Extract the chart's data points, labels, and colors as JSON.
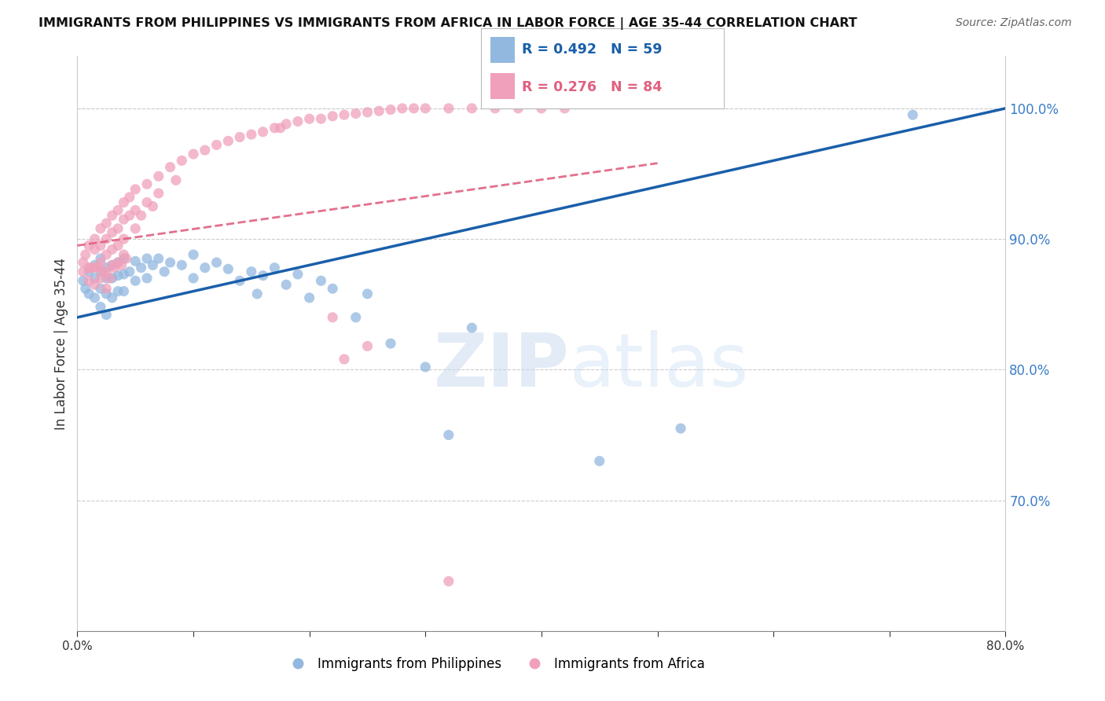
{
  "title": "IMMIGRANTS FROM PHILIPPINES VS IMMIGRANTS FROM AFRICA IN LABOR FORCE | AGE 35-44 CORRELATION CHART",
  "source": "Source: ZipAtlas.com",
  "ylabel": "In Labor Force | Age 35-44",
  "xlim": [
    0.0,
    0.8
  ],
  "ylim": [
    0.6,
    1.04
  ],
  "yticks_right": [
    0.7,
    0.8,
    0.9,
    1.0
  ],
  "blue_R": 0.492,
  "blue_N": 59,
  "pink_R": 0.276,
  "pink_N": 84,
  "blue_color": "#92b8e0",
  "pink_color": "#f0a0ba",
  "blue_line_color": "#1a5faa",
  "pink_line_color": "#e06080",
  "legend_blue_label": "Immigrants from Philippines",
  "legend_pink_label": "Immigrants from Africa",
  "watermark_zip": "ZIP",
  "watermark_atlas": "atlas",
  "blue_x": [
    0.005,
    0.007,
    0.01,
    0.01,
    0.015,
    0.015,
    0.015,
    0.02,
    0.02,
    0.02,
    0.02,
    0.025,
    0.025,
    0.025,
    0.025,
    0.03,
    0.03,
    0.03,
    0.035,
    0.035,
    0.035,
    0.04,
    0.04,
    0.04,
    0.045,
    0.05,
    0.05,
    0.055,
    0.06,
    0.06,
    0.065,
    0.07,
    0.075,
    0.08,
    0.09,
    0.1,
    0.1,
    0.11,
    0.12,
    0.13,
    0.14,
    0.15,
    0.155,
    0.16,
    0.17,
    0.18,
    0.19,
    0.2,
    0.21,
    0.22,
    0.24,
    0.25,
    0.27,
    0.3,
    0.32,
    0.34,
    0.45,
    0.52,
    0.72
  ],
  "blue_y": [
    0.868,
    0.862,
    0.875,
    0.858,
    0.88,
    0.87,
    0.855,
    0.885,
    0.875,
    0.862,
    0.848,
    0.878,
    0.87,
    0.858,
    0.842,
    0.88,
    0.87,
    0.855,
    0.882,
    0.872,
    0.86,
    0.885,
    0.873,
    0.86,
    0.875,
    0.883,
    0.868,
    0.878,
    0.885,
    0.87,
    0.88,
    0.885,
    0.875,
    0.882,
    0.88,
    0.888,
    0.87,
    0.878,
    0.882,
    0.877,
    0.868,
    0.875,
    0.858,
    0.872,
    0.878,
    0.865,
    0.873,
    0.855,
    0.868,
    0.862,
    0.84,
    0.858,
    0.82,
    0.802,
    0.75,
    0.832,
    0.73,
    0.755,
    0.995
  ],
  "pink_x": [
    0.005,
    0.005,
    0.007,
    0.01,
    0.01,
    0.01,
    0.012,
    0.015,
    0.015,
    0.015,
    0.015,
    0.018,
    0.02,
    0.02,
    0.02,
    0.02,
    0.022,
    0.025,
    0.025,
    0.025,
    0.025,
    0.025,
    0.028,
    0.03,
    0.03,
    0.03,
    0.03,
    0.032,
    0.035,
    0.035,
    0.035,
    0.035,
    0.038,
    0.04,
    0.04,
    0.04,
    0.04,
    0.042,
    0.045,
    0.045,
    0.05,
    0.05,
    0.05,
    0.055,
    0.06,
    0.06,
    0.065,
    0.07,
    0.07,
    0.08,
    0.085,
    0.09,
    0.1,
    0.11,
    0.12,
    0.13,
    0.14,
    0.15,
    0.16,
    0.17,
    0.175,
    0.18,
    0.19,
    0.2,
    0.21,
    0.22,
    0.23,
    0.24,
    0.25,
    0.26,
    0.27,
    0.28,
    0.29,
    0.3,
    0.32,
    0.34,
    0.36,
    0.38,
    0.4,
    0.42,
    0.22,
    0.23,
    0.25,
    0.32
  ],
  "pink_y": [
    0.882,
    0.875,
    0.888,
    0.895,
    0.878,
    0.868,
    0.878,
    0.9,
    0.892,
    0.878,
    0.865,
    0.878,
    0.908,
    0.895,
    0.882,
    0.87,
    0.875,
    0.912,
    0.9,
    0.888,
    0.875,
    0.862,
    0.87,
    0.918,
    0.905,
    0.892,
    0.88,
    0.878,
    0.922,
    0.908,
    0.895,
    0.882,
    0.88,
    0.928,
    0.915,
    0.9,
    0.888,
    0.885,
    0.932,
    0.918,
    0.938,
    0.922,
    0.908,
    0.918,
    0.942,
    0.928,
    0.925,
    0.948,
    0.935,
    0.955,
    0.945,
    0.96,
    0.965,
    0.968,
    0.972,
    0.975,
    0.978,
    0.98,
    0.982,
    0.985,
    0.985,
    0.988,
    0.99,
    0.992,
    0.992,
    0.994,
    0.995,
    0.996,
    0.997,
    0.998,
    0.999,
    1.0,
    1.0,
    1.0,
    1.0,
    1.0,
    1.0,
    1.0,
    1.0,
    1.0,
    0.84,
    0.808,
    0.818,
    0.638
  ],
  "blue_trend": [
    0.0,
    0.8,
    0.84,
    1.0
  ],
  "pink_trend": [
    0.0,
    0.5,
    0.895,
    0.958
  ]
}
